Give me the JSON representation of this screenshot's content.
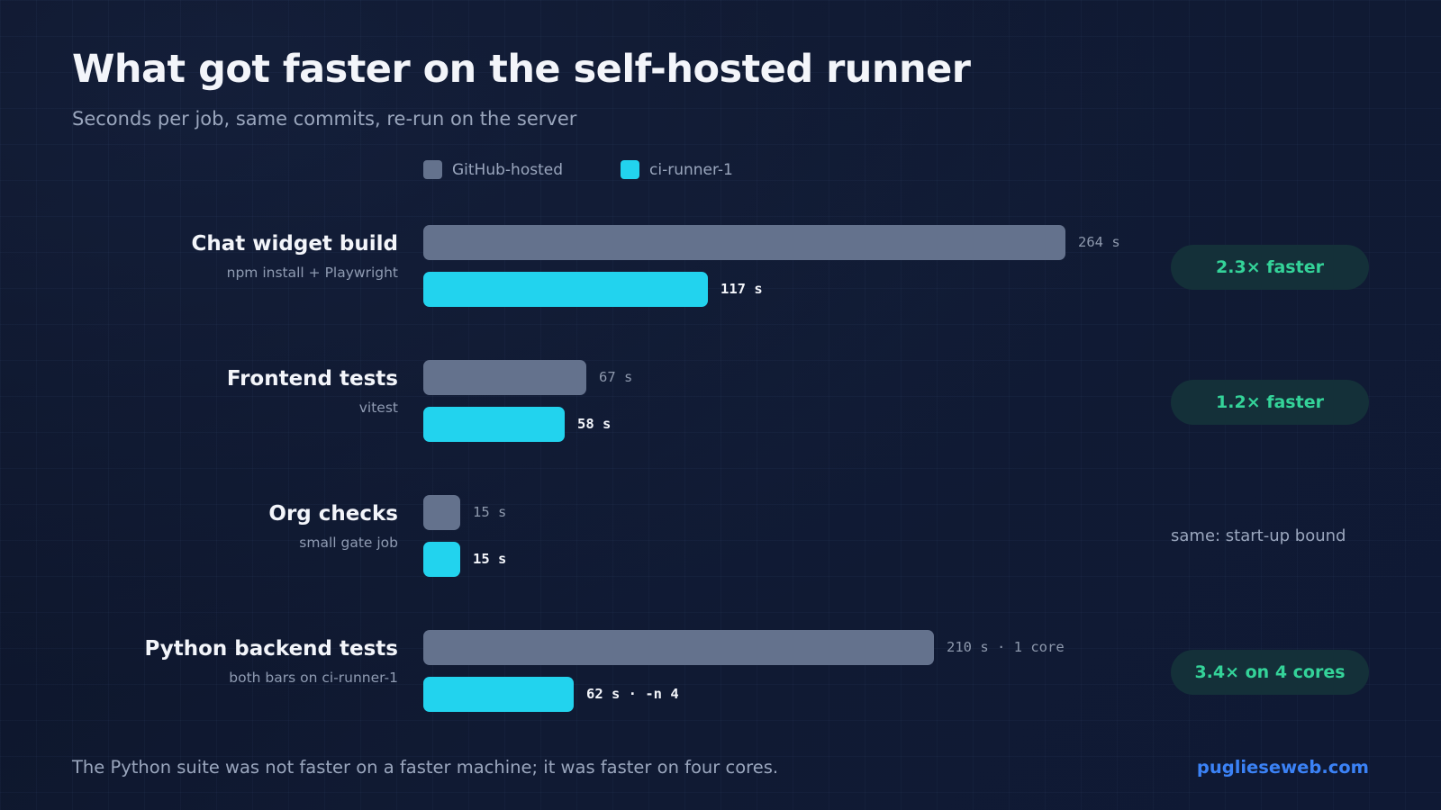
{
  "title": "What got faster on the self-hosted runner",
  "subtitle": "Seconds per job, same commits, re-run on the server",
  "legend": [
    {
      "label": "GitHub-hosted",
      "color": "#64728d"
    },
    {
      "label": "ci-runner-1",
      "color": "#22d3ee"
    }
  ],
  "chart_data": {
    "type": "bar",
    "orientation": "horizontal",
    "title": "What got faster on the self-hosted runner",
    "subtitle": "Seconds per job, same commits, re-run on the server",
    "xlabel": "",
    "ylabel": "",
    "xlim": [
      0,
      264
    ],
    "grid": false,
    "legend_position": "top",
    "categories": [
      "Chat widget build",
      "Frontend tests",
      "Org checks",
      "Python backend tests"
    ],
    "category_subtitles": [
      "npm install + Playwright",
      "vitest",
      "small gate job",
      "both bars on ci-runner-1"
    ],
    "series": [
      {
        "name": "GitHub-hosted",
        "color": "#64728d",
        "values": [
          264,
          67,
          15,
          210
        ],
        "labels": [
          "264 s",
          "67 s",
          "15 s",
          "210 s · 1 core"
        ]
      },
      {
        "name": "ci-runner-1",
        "color": "#22d3ee",
        "values": [
          117,
          58,
          15,
          62
        ],
        "labels": [
          "117 s",
          "58 s",
          "15 s",
          "62 s · -n 4"
        ]
      }
    ],
    "annotations": [
      {
        "text": "2.3× faster",
        "style": "badge"
      },
      {
        "text": "1.2× faster",
        "style": "badge"
      },
      {
        "text": "same: start-up bound",
        "style": "note"
      },
      {
        "text": "3.4× on 4 cores",
        "style": "badge"
      }
    ]
  },
  "footer": "The Python suite was not faster on a faster machine; it was faster on four cores.",
  "brand": "puglieseweb.com"
}
